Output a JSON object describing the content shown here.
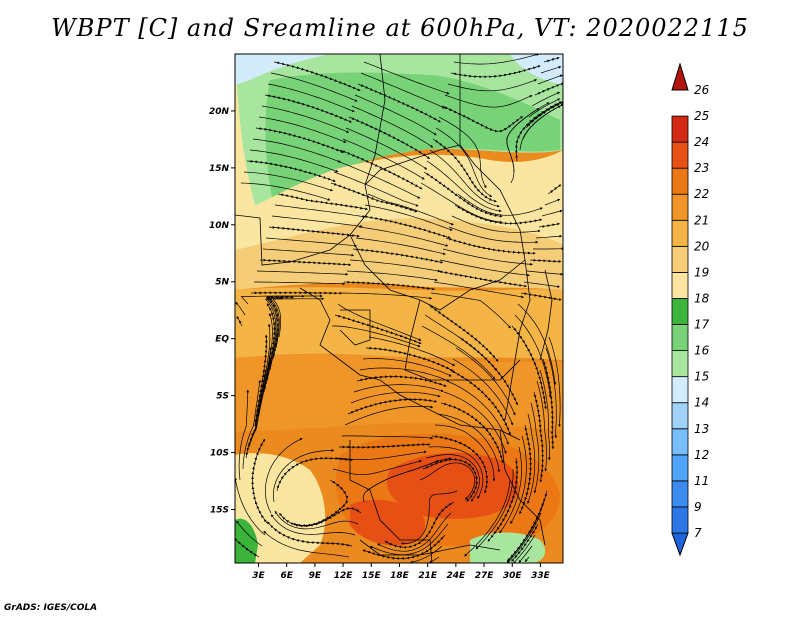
{
  "title": "WBPT [C] and Sreamline at 600hPa, VT: 2020022115",
  "credit": "GrADS: IGES/COLA",
  "lon_labels": [
    "3E",
    "6E",
    "9E",
    "12E",
    "15E",
    "18E",
    "21E",
    "24E",
    "27E",
    "30E",
    "33E"
  ],
  "lon_values": [
    3,
    6,
    9,
    12,
    15,
    18,
    21,
    24,
    27,
    30,
    33
  ],
  "lat_labels": [
    "20N",
    "15N",
    "10N",
    "5N",
    "EQ",
    "5S",
    "10S",
    "15S"
  ],
  "lat_values": [
    20,
    15,
    10,
    5,
    0,
    -5,
    -10,
    -15
  ],
  "map_extent": {
    "lon_min": 0.5,
    "lon_max": 35.4,
    "lat_min": -19.7,
    "lat_max": 25.0
  },
  "colorbar": {
    "labels": [
      "7",
      "9",
      "11",
      "12",
      "13",
      "14",
      "15",
      "16",
      "17",
      "18",
      "19",
      "20",
      "21",
      "22",
      "23",
      "24",
      "25",
      "26"
    ],
    "colors": [
      "#1e64dc",
      "#2d78e6",
      "#3c8cf0",
      "#50a5f5",
      "#78bef8",
      "#a0d2fa",
      "#d2ecfc",
      "#a8e6a0",
      "#78d278",
      "#3cb43c",
      "#fae6a0",
      "#f5cd78",
      "#f5b446",
      "#f09628",
      "#eb7814",
      "#e65014",
      "#d22814",
      "#b4140a"
    ]
  }
}
